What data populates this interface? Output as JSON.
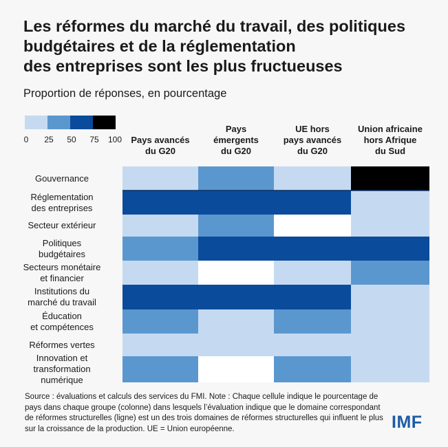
{
  "title_lines": [
    "Les réformes du marché du travail, des politiques",
    "budgétaires et de la réglementation",
    "des entreprises sont les plus fructueuses"
  ],
  "subtitle": "Proportion de réponses, en pourcentage",
  "legend": {
    "colors": [
      "#c5daf0",
      "#5b97cf",
      "#0b4b9c",
      "#000000"
    ],
    "ticks": [
      "0",
      "25",
      "50",
      "75",
      "100"
    ]
  },
  "source": "Source : évaluations et calculs des services du FMI. Note : Chaque cellule indique le pourcentage de pays dans chaque groupe (colonne) dans lesquels l’évaluation indique que le domaine correspondant de réformes structurelles (ligne) est un des trois domaines de réformes structurelles qui influent le plus sur la croissance de la production. UE = Union européenne.",
  "logo": "IMF",
  "chart_data": {
    "type": "heatmap",
    "value_bins": [
      0,
      25,
      50,
      75,
      100
    ],
    "columns": [
      "Pays avancés\ndu G20",
      "Pays\némergents\ndu G20",
      "UE hors\npays avancés\ndu G20",
      "Union africaine\nhors Afrique\ndu Sud"
    ],
    "rows": [
      "Gouvernance",
      "Réglementation\ndes entreprises",
      "Secteur extérieur",
      "Politiques\nbudgétaires",
      "Secteurs monétaire\net financier",
      "Institutions du\nmarché du travail",
      "Éducation\net compétences",
      "Réformes vertes",
      "Innovation et\ntransformation\nnumérique"
    ],
    "bins": [
      [
        1,
        2,
        1,
        4
      ],
      [
        3,
        3,
        3,
        1
      ],
      [
        1,
        2,
        0,
        1
      ],
      [
        2,
        3,
        3,
        3
      ],
      [
        1,
        0,
        1,
        2
      ],
      [
        3,
        3,
        3,
        1
      ],
      [
        2,
        1,
        2,
        1
      ],
      [
        1,
        1,
        1,
        1
      ],
      [
        2,
        0,
        2,
        1
      ]
    ],
    "bin_legend": {
      "0": "0 (no color)",
      "1": "0–25",
      "2": "25–50",
      "3": "50–75",
      "4": "75–100"
    }
  }
}
